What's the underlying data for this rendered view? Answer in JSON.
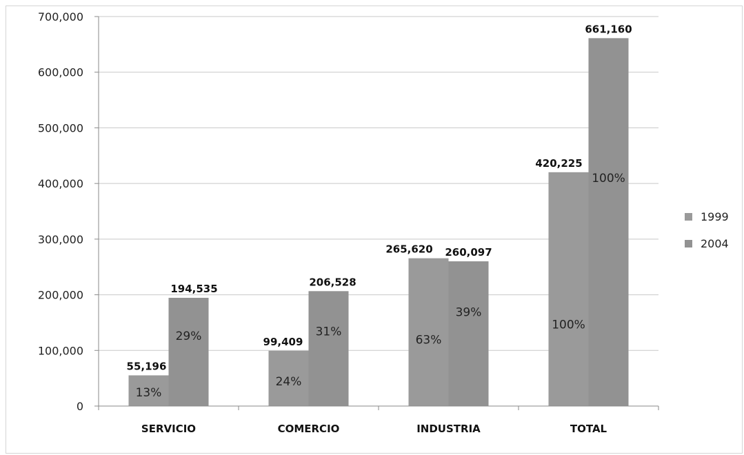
{
  "chart_data": {
    "type": "bar",
    "categories": [
      "SERVICIO",
      "COMERCIO",
      "INDUSTRIA",
      "TOTAL"
    ],
    "series": [
      {
        "name": "1999",
        "values": [
          55196,
          99409,
          265620,
          420225
        ],
        "value_labels": [
          "55,196",
          "99,409",
          "265,620",
          "420,225"
        ],
        "percent_labels": [
          "13%",
          "24%",
          "63%",
          "100%"
        ],
        "color": "#9a9a9a"
      },
      {
        "name": "2004",
        "values": [
          194535,
          206528,
          260097,
          661160
        ],
        "value_labels": [
          "194,535",
          "206,528",
          "260,097",
          "661,160"
        ],
        "percent_labels": [
          "29%",
          "31%",
          "39%",
          "100%"
        ],
        "color": "#929292"
      }
    ],
    "ylim": [
      0,
      700000
    ],
    "yticks": [
      0,
      100000,
      200000,
      300000,
      400000,
      500000,
      600000,
      700000
    ],
    "ytick_labels": [
      "0",
      "100,000",
      "200,000",
      "300,000",
      "400,000",
      "500,000",
      "600,000",
      "700,000"
    ],
    "grid": true,
    "legend": "right",
    "title": "",
    "xlabel": "",
    "ylabel": ""
  }
}
